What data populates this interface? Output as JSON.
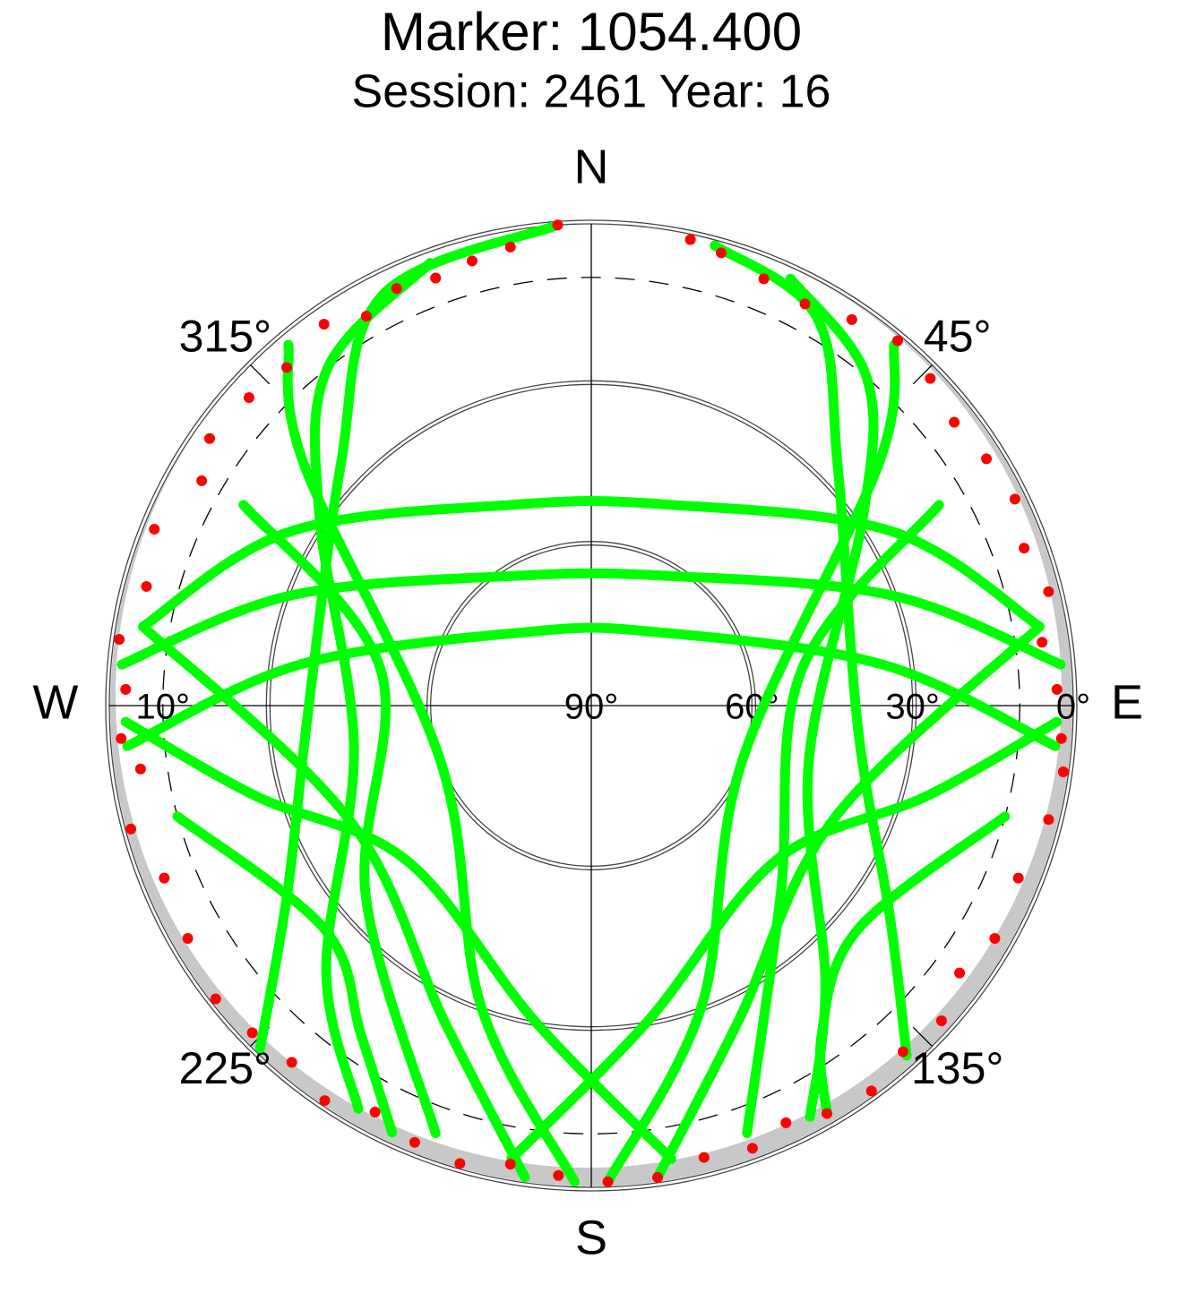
{
  "chart_data": {
    "type": "skyplot",
    "title": "Marker: 1054.400",
    "subtitle": "Session: 2461 Year: 16",
    "rlim": [
      90,
      0
    ],
    "rticks": [
      {
        "value": 90,
        "label": "90°"
      },
      {
        "value": 60,
        "label": "60°"
      },
      {
        "value": 30,
        "label": "30°"
      },
      {
        "value": 10,
        "label": "10°"
      },
      {
        "value": 0,
        "label": "0°"
      }
    ],
    "elevation_mask": 10,
    "azticks": [
      {
        "value": 0,
        "label": "N"
      },
      {
        "value": 45,
        "label": "45°"
      },
      {
        "value": 90,
        "label": "E"
      },
      {
        "value": 135,
        "label": "135°"
      },
      {
        "value": 180,
        "label": "S"
      },
      {
        "value": 225,
        "label": "225°"
      },
      {
        "value": 270,
        "label": "W"
      },
      {
        "value": 315,
        "label": "315°"
      }
    ],
    "tracks": {
      "color": "#00ff00",
      "lines": [
        {
          "az": [
            356,
            333,
            314,
            268,
            238,
            224
          ],
          "el": [
            0,
            4,
            25,
            37,
            23,
            1
          ]
        },
        {
          "az": [
            15,
            30,
            46,
            95,
            125,
            138
          ],
          "el": [
            1,
            6,
            26,
            40,
            22,
            2
          ]
        },
        {
          "az": [
            340,
            322,
            305,
            260,
            225,
            210
          ],
          "el": [
            2,
            10,
            28,
            45,
            20,
            3
          ]
        },
        {
          "az": [
            25,
            40,
            55,
            105,
            140,
            152
          ],
          "el": [
            2,
            10,
            28,
            48,
            22,
            3
          ]
        },
        {
          "az": [
            275,
            290,
            330,
            30,
            70,
            85
          ],
          "el": [
            2,
            30,
            62,
            62,
            30,
            2
          ]
        },
        {
          "az": [
            265,
            278,
            320,
            40,
            82,
            95
          ],
          "el": [
            3,
            35,
            72,
            72,
            35,
            3
          ]
        },
        {
          "az": [
            280,
            300,
            340,
            20,
            60,
            80
          ],
          "el": [
            5,
            25,
            50,
            50,
            25,
            5
          ]
        },
        {
          "az": [
            268,
            255,
            230,
            190,
            170
          ],
          "el": [
            3,
            25,
            45,
            30,
            4
          ]
        },
        {
          "az": [
            92,
            105,
            130,
            170,
            190
          ],
          "el": [
            3,
            25,
            45,
            30,
            4
          ]
        },
        {
          "az": [
            320,
            310,
            250,
            200,
            182
          ],
          "el": [
            2,
            20,
            60,
            30,
            1
          ]
        },
        {
          "az": [
            40,
            50,
            110,
            160,
            178
          ],
          "el": [
            2,
            20,
            60,
            30,
            1
          ]
        },
        {
          "az": [
            280,
            245,
            205,
            188
          ],
          "el": [
            5,
            40,
            25,
            1
          ]
        },
        {
          "az": [
            80,
            115,
            155,
            172
          ],
          "el": [
            5,
            40,
            25,
            1
          ]
        },
        {
          "az": [
            300,
            280,
            230,
            200
          ],
          "el": [
            15,
            50,
            35,
            5
          ]
        },
        {
          "az": [
            60,
            80,
            135,
            160
          ],
          "el": [
            15,
            50,
            40,
            5
          ]
        },
        {
          "az": [
            255,
            230,
            215,
            205
          ],
          "el": [
            10,
            25,
            15,
            2
          ]
        },
        {
          "az": [
            105,
            130,
            145,
            150
          ],
          "el": [
            10,
            25,
            15,
            2
          ]
        }
      ]
    },
    "endpoints": {
      "color": "#ff0000",
      "az": [
        356,
        350,
        345,
        340,
        335,
        330,
        325,
        318,
        312,
        305,
        300,
        292,
        285,
        278,
        272,
        266,
        262,
        255,
        248,
        240,
        232,
        226,
        220,
        214,
        208,
        202,
        196,
        190,
        184,
        178,
        172,
        166,
        160,
        155,
        150,
        144,
        138,
        132,
        126,
        120,
        112,
        104,
        98,
        94,
        88,
        82,
        76,
        70,
        64,
        58,
        52,
        46,
        40,
        34,
        28,
        22,
        16,
        12
      ],
      "el": [
        0,
        3,
        4,
        5,
        4,
        6,
        3,
        5,
        4,
        3,
        6,
        2,
        4,
        1,
        3,
        2,
        5,
        1,
        4,
        3,
        1,
        2,
        3,
        1,
        4,
        2,
        1,
        3,
        2,
        1,
        1,
        3,
        2,
        4,
        2,
        1,
        3,
        2,
        5,
        3,
        4,
        2,
        1,
        2,
        3,
        5,
        2,
        4,
        2,
        3,
        4,
        2,
        1,
        3,
        5,
        4,
        2,
        1
      ]
    }
  }
}
